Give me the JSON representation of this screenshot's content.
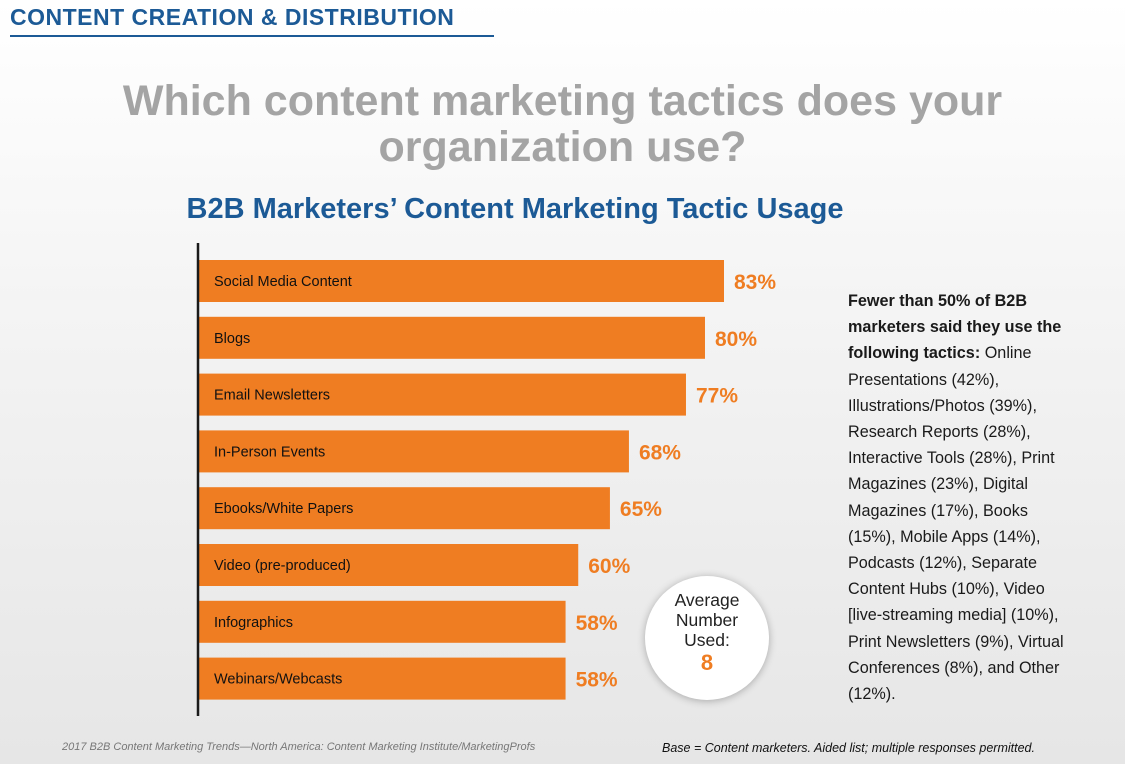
{
  "section_title": "CONTENT CREATION & DISTRIBUTION",
  "question": "Which content marketing tactics does your organization use?",
  "chart_data": {
    "type": "bar",
    "orientation": "horizontal",
    "title": "B2B Marketers’ Content Marketing Tactic Usage",
    "categories": [
      "Social Media Content",
      "Blogs",
      "Email Newsletters",
      "In-Person Events",
      "Ebooks/White Papers",
      "Video (pre-produced)",
      "Infographics",
      "Webinars/Webcasts"
    ],
    "values": [
      83,
      80,
      77,
      68,
      65,
      60,
      58,
      58
    ],
    "value_labels": [
      "83%",
      "80%",
      "77%",
      "68%",
      "65%",
      "60%",
      "58%",
      "58%"
    ],
    "unit": "%",
    "bar_color": "#ef7d22",
    "axis_color": "#1a1a1a",
    "xlim": [
      0,
      100
    ],
    "grid": false,
    "legend": "none"
  },
  "average": {
    "label": "Average Number Used:",
    "value": "8"
  },
  "side_note": {
    "heading": "Fewer than 50% of B2B marketers said they use the following tactics:",
    "body": "Online Presentations (42%), Illustrations/Photos (39%), Research Reports (28%), Interactive Tools (28%), Print Magazines (23%), Digital Magazines (17%), Books (15%), Mobile Apps (14%), Podcasts (12%), Separate Content Hubs (10%), Video [live-streaming media] (10%), Print Newsletters (9%), Virtual Conferences (8%), and Other (12%)."
  },
  "source_note": "2017 B2B Content Marketing Trends—North America: Content Marketing Institute/MarketingProfs",
  "base_note": "Base = Content marketers. Aided list; multiple responses permitted.",
  "colors": {
    "accent_blue": "#1c5a96",
    "question_gray": "#a4a4a4",
    "bar_orange": "#ef7d22"
  }
}
